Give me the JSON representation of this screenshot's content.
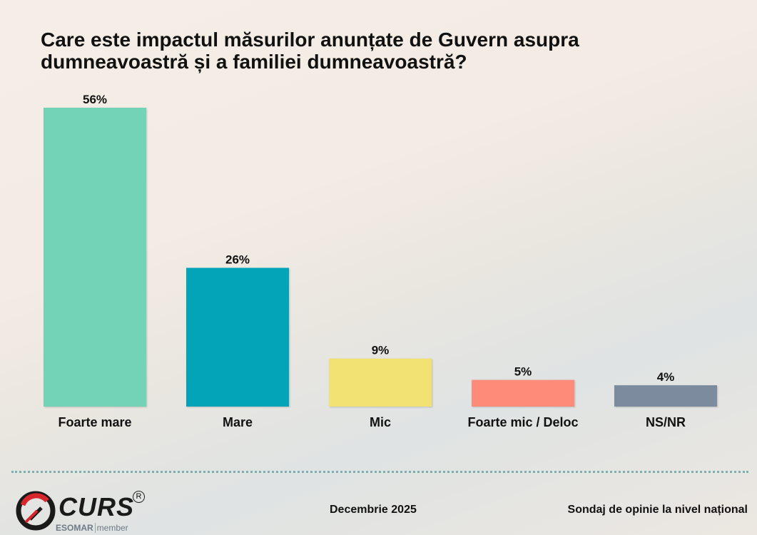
{
  "title": "Care este impactul măsurilor anunțate de Guvern asupra dumneavoastră și a familiei dumneavoastră?",
  "chart_data": {
    "type": "bar",
    "title": "Care este impactul măsurilor anunțate de Guvern asupra dumneavoastră și a familiei dumneavoastră?",
    "categories": [
      "Foarte mare",
      "Mare",
      "Mic",
      "Foarte mic / Deloc",
      "NS/NR"
    ],
    "values": [
      56,
      26,
      9,
      5,
      4
    ],
    "value_labels": [
      "56%",
      "26%",
      "9%",
      "5%",
      "4%"
    ],
    "colors": [
      "#72d3b6",
      "#03a4b8",
      "#f2e173",
      "#fd8b7a",
      "#7c8c9e"
    ],
    "unit": "%",
    "ylim": [
      0,
      56
    ],
    "grid": false,
    "legend": "none"
  },
  "footer": {
    "logo_text": "CURS",
    "logo_reg": "R",
    "logo_esomar": "ESOMAR",
    "logo_member": "member",
    "date": "Decembrie 2025",
    "survey": "Sondaj de opinie la nivel național"
  }
}
